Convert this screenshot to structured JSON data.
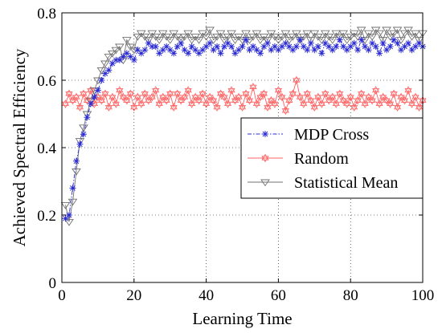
{
  "chart_data": {
    "type": "line",
    "title": "",
    "xlabel": "Learning Time",
    "ylabel": "Achieved Spectral Efficiency",
    "xlim": [
      0,
      100
    ],
    "ylim": [
      0,
      0.8
    ],
    "xticks": [
      0,
      20,
      40,
      60,
      80,
      100
    ],
    "yticks": [
      0,
      0.2,
      0.4,
      0.6,
      0.8
    ],
    "xtick_labels": [
      "0",
      "20",
      "40",
      "60",
      "80",
      "100"
    ],
    "ytick_labels": [
      "0",
      "0.2",
      "0.4",
      "0.6",
      "0.8"
    ],
    "grid": "on",
    "legend_position": "center-right",
    "series": [
      {
        "name": "MDP Cross",
        "color": "#2b2bd4",
        "line_style": "dashdot",
        "marker": "asterisk",
        "values": [
          0.19,
          0.2,
          0.28,
          0.36,
          0.41,
          0.44,
          0.49,
          0.53,
          0.55,
          0.57,
          0.6,
          0.62,
          0.63,
          0.65,
          0.66,
          0.66,
          0.67,
          0.68,
          0.67,
          0.66,
          0.69,
          0.68,
          0.69,
          0.71,
          0.7,
          0.7,
          0.68,
          0.69,
          0.7,
          0.69,
          0.68,
          0.7,
          0.71,
          0.69,
          0.68,
          0.7,
          0.69,
          0.68,
          0.69,
          0.7,
          0.71,
          0.69,
          0.7,
          0.68,
          0.7,
          0.71,
          0.7,
          0.68,
          0.69,
          0.7,
          0.72,
          0.69,
          0.7,
          0.69,
          0.68,
          0.7,
          0.71,
          0.69,
          0.7,
          0.69,
          0.7,
          0.71,
          0.7,
          0.69,
          0.7,
          0.72,
          0.7,
          0.69,
          0.71,
          0.69,
          0.7,
          0.68,
          0.71,
          0.7,
          0.69,
          0.7,
          0.72,
          0.7,
          0.69,
          0.7,
          0.71,
          0.69,
          0.72,
          0.7,
          0.69,
          0.71,
          0.7,
          0.68,
          0.71,
          0.69,
          0.7,
          0.72,
          0.71,
          0.69,
          0.7,
          0.71,
          0.69,
          0.7,
          0.71,
          0.7
        ]
      },
      {
        "name": "Random",
        "color": "#ff6060",
        "line_style": "solid",
        "marker": "hexagram",
        "values": [
          0.53,
          0.56,
          0.54,
          0.55,
          0.52,
          0.56,
          0.54,
          0.57,
          0.53,
          0.55,
          0.54,
          0.56,
          0.52,
          0.55,
          0.53,
          0.57,
          0.55,
          0.54,
          0.56,
          0.52,
          0.55,
          0.53,
          0.56,
          0.54,
          0.55,
          0.57,
          0.53,
          0.55,
          0.54,
          0.56,
          0.52,
          0.56,
          0.54,
          0.55,
          0.57,
          0.53,
          0.55,
          0.54,
          0.56,
          0.53,
          0.55,
          0.54,
          0.52,
          0.56,
          0.55,
          0.53,
          0.57,
          0.54,
          0.55,
          0.52,
          0.56,
          0.54,
          0.58,
          0.53,
          0.55,
          0.56,
          0.52,
          0.54,
          0.53,
          0.57,
          0.55,
          0.51,
          0.54,
          0.56,
          0.6,
          0.55,
          0.53,
          0.56,
          0.54,
          0.52,
          0.55,
          0.53,
          0.56,
          0.54,
          0.55,
          0.53,
          0.56,
          0.54,
          0.53,
          0.55,
          0.52,
          0.54,
          0.56,
          0.53,
          0.55,
          0.54,
          0.57,
          0.53,
          0.55,
          0.54,
          0.53,
          0.56,
          0.52,
          0.55,
          0.54,
          0.57,
          0.53,
          0.55,
          0.52,
          0.54
        ]
      },
      {
        "name": "Statistical Mean",
        "color": "#707070",
        "line_style": "solid",
        "marker": "triangle-down",
        "values": [
          0.23,
          0.18,
          0.24,
          0.33,
          0.42,
          0.46,
          0.5,
          0.54,
          0.57,
          0.6,
          0.63,
          0.65,
          0.67,
          0.68,
          0.69,
          0.7,
          0.66,
          0.72,
          0.7,
          0.69,
          0.73,
          0.74,
          0.73,
          0.72,
          0.74,
          0.73,
          0.72,
          0.74,
          0.73,
          0.72,
          0.74,
          0.73,
          0.72,
          0.73,
          0.74,
          0.72,
          0.73,
          0.72,
          0.74,
          0.73,
          0.75,
          0.72,
          0.73,
          0.74,
          0.72,
          0.73,
          0.74,
          0.72,
          0.73,
          0.72,
          0.74,
          0.72,
          0.73,
          0.74,
          0.72,
          0.73,
          0.72,
          0.74,
          0.73,
          0.72,
          0.73,
          0.74,
          0.72,
          0.73,
          0.74,
          0.72,
          0.73,
          0.74,
          0.72,
          0.74,
          0.73,
          0.72,
          0.74,
          0.73,
          0.72,
          0.74,
          0.73,
          0.74,
          0.72,
          0.73,
          0.74,
          0.73,
          0.75,
          0.72,
          0.74,
          0.73,
          0.75,
          0.74,
          0.72,
          0.75,
          0.73,
          0.74,
          0.75,
          0.72,
          0.74,
          0.75,
          0.73,
          0.74,
          0.72,
          0.74
        ]
      }
    ]
  }
}
